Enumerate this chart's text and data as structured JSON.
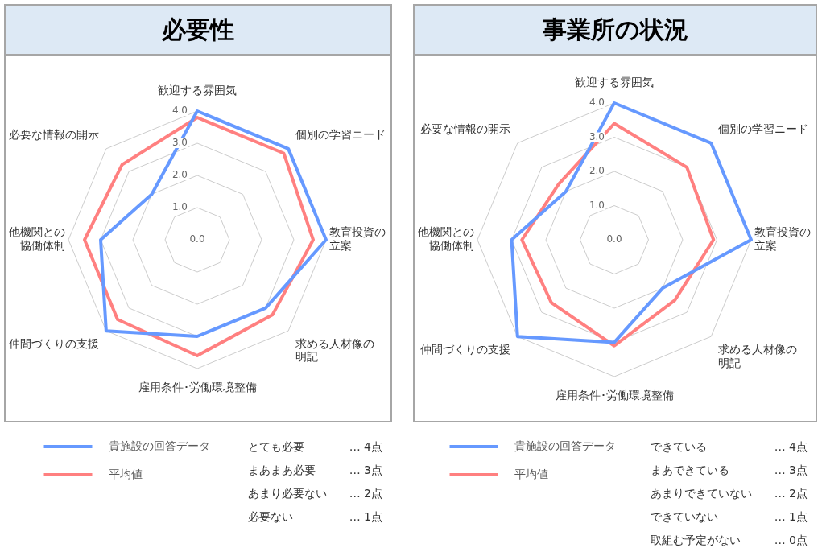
{
  "chart_data": [
    {
      "type": "radar",
      "title": "必要性",
      "categories": [
        "歓迎する雰囲気",
        "個別の学習ニード",
        "教育投資の立案",
        "求める人材像の明記",
        "雇用条件･労働環境整備",
        "仲間づくりの支援",
        "他機関との協働体制",
        "必要な情報の開示"
      ],
      "series": [
        {
          "name": "貴施設の回答データ",
          "color": "#6699ff",
          "values": [
            4.0,
            4.0,
            4.0,
            3.0,
            3.0,
            4.0,
            3.0,
            2.0
          ]
        },
        {
          "name": "平均値",
          "color": "#ff8080",
          "values": [
            3.8,
            3.8,
            3.6,
            3.3,
            3.6,
            3.5,
            3.5,
            3.3
          ]
        }
      ],
      "ylim": [
        0,
        4
      ],
      "yticks": [
        {
          "value": 0,
          "label": "0.0"
        },
        {
          "value": 1,
          "label": "1.0"
        },
        {
          "value": 2,
          "label": "2.0"
        },
        {
          "value": 3,
          "label": "3.0"
        },
        {
          "value": 4,
          "label": "4.0"
        }
      ],
      "grid": true,
      "legend": "bottom left",
      "marker": "none",
      "line_style": "solid",
      "annotations": [
        "とても必要",
        "… 4点",
        "まあまあ必要",
        "… 3点",
        "あまり必要ない",
        "… 2点",
        "必要ない",
        "… 1点"
      ]
    },
    {
      "type": "radar",
      "title": "事業所の状況",
      "categories": [
        "歓迎する雰囲気",
        "個別の学習ニード",
        "教育投資の立案",
        "求める人材像の明記",
        "雇用条件･労働環境整備",
        "仲間づくりの支援",
        "他機関との協働体制",
        "必要な情報の開示"
      ],
      "series": [
        {
          "name": "貴施設の回答データ",
          "color": "#6699ff",
          "values": [
            4.0,
            4.0,
            4.0,
            2.0,
            3.0,
            4.0,
            3.0,
            2.0
          ]
        },
        {
          "name": "平均値",
          "color": "#ff8080",
          "values": [
            3.4,
            3.0,
            2.9,
            2.5,
            3.1,
            2.6,
            2.7,
            2.3
          ]
        }
      ],
      "ylim": [
        0,
        4
      ],
      "yticks": [
        {
          "value": 0,
          "label": "0.0"
        },
        {
          "value": 1,
          "label": "1.0"
        },
        {
          "value": 2,
          "label": "2.0"
        },
        {
          "value": 3,
          "label": "3.0"
        },
        {
          "value": 4,
          "label": "4.0"
        }
      ],
      "grid": true,
      "legend": "bottom left",
      "marker": "none",
      "line_style": "solid",
      "annotations": [
        "できている",
        "… 4点",
        "まあできている",
        "… 3点",
        "あまりできていない",
        "… 2点",
        "できていない",
        "… 1点",
        "取組む予定がない",
        "… 0点"
      ]
    }
  ]
}
